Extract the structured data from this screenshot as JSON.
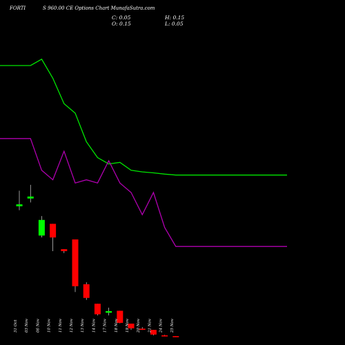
{
  "header": {
    "symbol": "FORTI",
    "title": "S 960.00 CE Options Chart MunafaSutra.com",
    "close": "C: 0.05",
    "open": "O: 0.15",
    "high": "H: 0.15",
    "low": "L: 0.05"
  },
  "colors": {
    "background": "#000000",
    "up": "#00ff00",
    "down": "#ff0000",
    "ma_short": "#00e600",
    "ma_long": "#b000b0"
  },
  "chart_data": {
    "type": "candlestick",
    "x": [
      "31 Oct",
      "03 Nov",
      "06 Nov",
      "10 Nov",
      "11 Nov",
      "12 Nov",
      "13 Nov",
      "14 Nov",
      "17 Nov",
      "18 Nov",
      "19 Nov",
      "20 Nov",
      "21 Nov",
      "24 Nov",
      "25 Nov"
    ],
    "candles": [
      {
        "o": 28.5,
        "h": 32.5,
        "l": 27.5,
        "c": 29.0
      },
      {
        "o": 30.5,
        "h": 34.0,
        "l": 29.5,
        "c": 31.0
      },
      {
        "o": 21.0,
        "h": 26.0,
        "l": 20.5,
        "c": 25.0
      },
      {
        "o": 24.0,
        "h": 24.0,
        "l": 17.0,
        "c": 20.5
      },
      {
        "o": 17.5,
        "h": 17.5,
        "l": 16.5,
        "c": 17.0
      },
      {
        "o": 20.0,
        "h": 20.0,
        "l": 6.5,
        "c": 8.0
      },
      {
        "o": 8.5,
        "h": 9.0,
        "l": 4.5,
        "c": 5.0
      },
      {
        "o": 3.5,
        "h": 3.5,
        "l": 0.5,
        "c": 0.8
      },
      {
        "o": 1.2,
        "h": 2.5,
        "l": 0.5,
        "c": 1.6
      },
      {
        "o": 1.7,
        "h": 1.7,
        "l": -1.5,
        "c": -1.4
      },
      {
        "o": -1.6,
        "h": -1.6,
        "l": -3.2,
        "c": -2.8
      },
      {
        "o": -2.9,
        "h": -2.5,
        "l": -3.2,
        "c": -3.2
      },
      {
        "o": -3.2,
        "h": -3.2,
        "l": -4.6,
        "c": -4.4
      },
      {
        "o": -4.6,
        "h": -4.5,
        "l": -4.9,
        "c": -4.8
      },
      {
        "o": -4.8,
        "h": -4.8,
        "l": -4.9,
        "c": -4.9
      }
    ],
    "ma_short": [
      100,
      100,
      102,
      96,
      88,
      85,
      76,
      71,
      69,
      69.5,
      67,
      66.5,
      66.2,
      65.8,
      65.5
    ],
    "ma_long": [
      77,
      77,
      67,
      64,
      73,
      63,
      64,
      63,
      70,
      63,
      60,
      53,
      60,
      49,
      43
    ]
  }
}
